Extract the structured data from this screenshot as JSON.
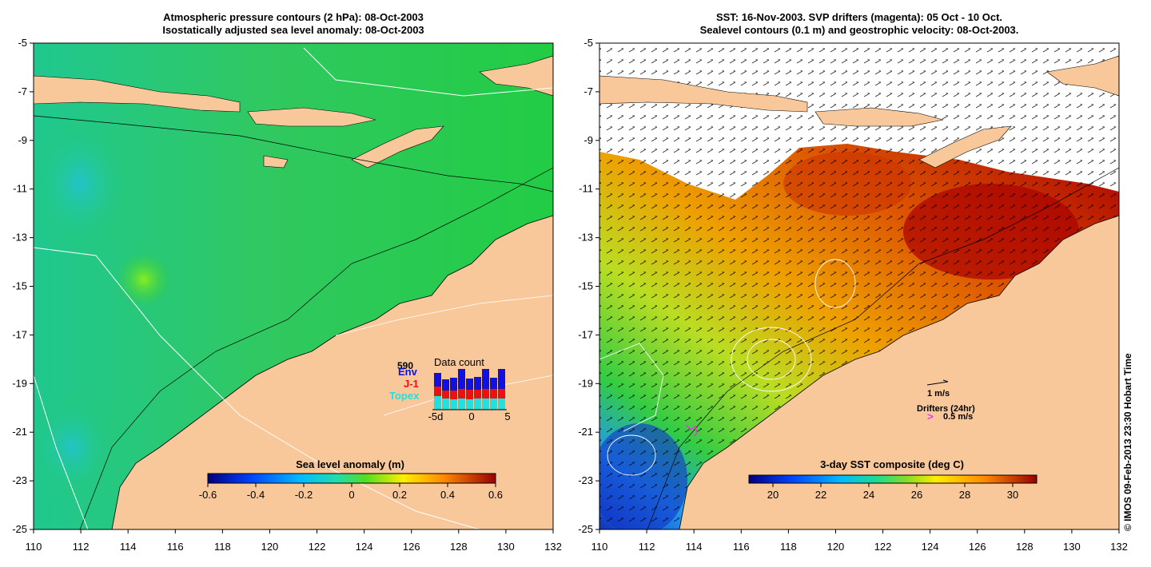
{
  "left_panel": {
    "title_line1": "Atmospheric pressure contours (2 hPa): 08-Oct-2003",
    "title_line2": "Isostatically adjusted sea level anomaly: 08-Oct-2003",
    "lat_ticks": [
      "-5",
      "-7",
      "-9",
      "-11",
      "-13",
      "-15",
      "-17",
      "-19",
      "-21",
      "-23",
      "-25"
    ],
    "lon_ticks": [
      "110",
      "112",
      "114",
      "116",
      "118",
      "120",
      "122",
      "124",
      "126",
      "128",
      "130",
      "132"
    ],
    "colorbar": {
      "title": "Sea level anomaly (m)",
      "ticks": [
        "-0.6",
        "-0.4",
        "-0.2",
        "0",
        "0.2",
        "0.4",
        "0.6"
      ],
      "range": [
        -0.6,
        0.6
      ]
    },
    "data_count": {
      "title": "Data count",
      "max_label": "590",
      "series": [
        {
          "name": "Env",
          "color": "#1010e0"
        },
        {
          "name": "J-1",
          "color": "#ee1010"
        },
        {
          "name": "Topex",
          "color": "#20e0e0"
        }
      ],
      "axis_ticks": [
        "-5d",
        "0",
        "5"
      ]
    }
  },
  "right_panel": {
    "title_line1": "SST: 16-Nov-2003. SVP drifters (magenta): 05 Oct - 10 Oct.",
    "title_line2": "Sealevel contours (0.1 m) and geostrophic velocity: 08-Oct-2003.",
    "lat_ticks": [
      "-5",
      "-7",
      "-9",
      "-11",
      "-13",
      "-15",
      "-17",
      "-19",
      "-21",
      "-23",
      "-25"
    ],
    "lon_ticks": [
      "110",
      "112",
      "114",
      "116",
      "118",
      "120",
      "122",
      "124",
      "126",
      "128",
      "130",
      "132"
    ],
    "colorbar": {
      "title": "3-day SST composite (deg C)",
      "ticks": [
        "20",
        "22",
        "24",
        "26",
        "28",
        "30"
      ],
      "range": [
        19,
        31
      ]
    },
    "legend": {
      "velocity_label": "1 m/s",
      "drifters_label": "Drifters (24hr)",
      "drifter_speed_label": "0.5 m/s"
    }
  },
  "credit": "© IMOS 09-Feb-2013 23:30 Hobart Time",
  "colors": {
    "land": "#f9c89a",
    "ocean_sla": "#22cc44",
    "sst_warm": "#cc3300",
    "sst_cool": "#2288ff",
    "drifter": "#ee33ee"
  }
}
